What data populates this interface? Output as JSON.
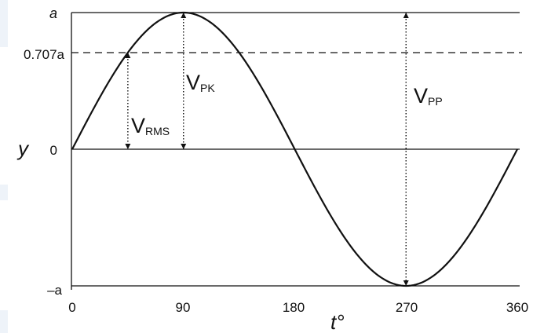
{
  "diagram": {
    "y_ticks": [
      {
        "value": 1,
        "label": "a"
      },
      {
        "value": 0.707,
        "label": "0.707a"
      },
      {
        "value": 0,
        "label": "0"
      },
      {
        "value": -1,
        "label": "–a"
      }
    ],
    "x_ticks": [
      {
        "value": 0,
        "label": "0"
      },
      {
        "value": 90,
        "label": "90"
      },
      {
        "value": 180,
        "label": "180"
      },
      {
        "value": 270,
        "label": "270"
      },
      {
        "value": 360,
        "label": "360"
      }
    ],
    "y_axis_label": "y",
    "x_axis_label": "t°",
    "curve": {
      "function": "sine",
      "amplitude_label": "a",
      "x_range": [
        0,
        360
      ]
    },
    "annotations": {
      "rms": {
        "main": "V",
        "sub": "RMS",
        "x_value": 45
      },
      "peak": {
        "main": "V",
        "sub": "PK",
        "x_value": 90
      },
      "peak_to_peak": {
        "main": "V",
        "sub": "PP",
        "x_value": 270
      }
    },
    "colors": {
      "line": "#111111",
      "background": "#ffffff",
      "edge_band": "#eef3f9"
    }
  }
}
